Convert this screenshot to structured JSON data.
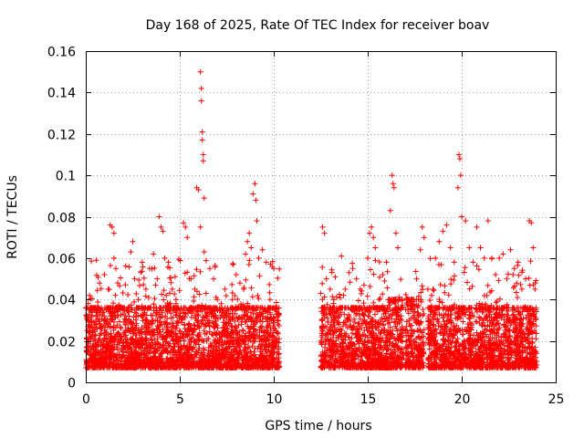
{
  "chart_data": {
    "type": "scatter",
    "title": "Day 168 of 2025, Rate Of TEC Index for receiver boav",
    "xlabel": "GPS time / hours",
    "ylabel": "ROTI / TECUs",
    "xlim": [
      0,
      25
    ],
    "ylim": [
      0,
      0.16
    ],
    "xticks": [
      0,
      5,
      10,
      15,
      20,
      25
    ],
    "xtick_labels": [
      "0",
      "5",
      "10",
      "15",
      "20",
      "25"
    ],
    "yticks": [
      0,
      0.02,
      0.04,
      0.06,
      0.08,
      0.1,
      0.12,
      0.14,
      0.16
    ],
    "ytick_labels": [
      "0",
      "0.02",
      "0.04",
      "0.06",
      "0.08",
      "0.1",
      "0.12",
      "0.14",
      "0.16"
    ],
    "grid": true,
    "marker": "+",
    "color": "#ff0000",
    "data_gap_hours": [
      10.3,
      12.5
    ],
    "series": [
      {
        "name": "ROTI",
        "points": [
          [
            0.1,
            0.015
          ],
          [
            0.2,
            0.042
          ],
          [
            0.3,
            0.03
          ],
          [
            0.5,
            0.02
          ],
          [
            0.6,
            0.035
          ],
          [
            0.8,
            0.018
          ],
          [
            1.0,
            0.025
          ],
          [
            1.2,
            0.045
          ],
          [
            1.3,
            0.076
          ],
          [
            1.4,
            0.075
          ],
          [
            1.5,
            0.072
          ],
          [
            1.5,
            0.06
          ],
          [
            1.6,
            0.055
          ],
          [
            1.7,
            0.048
          ],
          [
            1.9,
            0.02
          ],
          [
            2.1,
            0.03
          ],
          [
            2.4,
            0.063
          ],
          [
            2.5,
            0.068
          ],
          [
            2.6,
            0.05
          ],
          [
            2.8,
            0.04
          ],
          [
            3.0,
            0.058
          ],
          [
            3.2,
            0.045
          ],
          [
            3.4,
            0.055
          ],
          [
            3.6,
            0.062
          ],
          [
            3.8,
            0.05
          ],
          [
            3.9,
            0.08
          ],
          [
            4.0,
            0.075
          ],
          [
            4.1,
            0.073
          ],
          [
            4.2,
            0.06
          ],
          [
            4.4,
            0.058
          ],
          [
            4.6,
            0.045
          ],
          [
            4.8,
            0.04
          ],
          [
            5.0,
            0.035
          ],
          [
            5.2,
            0.077
          ],
          [
            5.3,
            0.075
          ],
          [
            5.4,
            0.07
          ],
          [
            5.6,
            0.05
          ],
          [
            5.8,
            0.045
          ],
          [
            5.9,
            0.094
          ],
          [
            6.0,
            0.093
          ],
          [
            6.1,
            0.075
          ],
          [
            6.1,
            0.15
          ],
          [
            6.15,
            0.142
          ],
          [
            6.15,
            0.136
          ],
          [
            6.2,
            0.121
          ],
          [
            6.2,
            0.117
          ],
          [
            6.25,
            0.11
          ],
          [
            6.25,
            0.107
          ],
          [
            6.3,
            0.089
          ],
          [
            6.3,
            0.063
          ],
          [
            6.4,
            0.043
          ],
          [
            6.6,
            0.055
          ],
          [
            6.8,
            0.05
          ],
          [
            7.0,
            0.04
          ],
          [
            7.2,
            0.038
          ],
          [
            7.4,
            0.045
          ],
          [
            7.6,
            0.035
          ],
          [
            7.8,
            0.04
          ],
          [
            8.0,
            0.052
          ],
          [
            8.2,
            0.048
          ],
          [
            8.4,
            0.045
          ],
          [
            8.5,
            0.062
          ],
          [
            8.6,
            0.068
          ],
          [
            8.7,
            0.072
          ],
          [
            8.8,
            0.065
          ],
          [
            8.9,
            0.091
          ],
          [
            9.0,
            0.096
          ],
          [
            9.05,
            0.088
          ],
          [
            9.1,
            0.078
          ],
          [
            9.2,
            0.06
          ],
          [
            9.4,
            0.064
          ],
          [
            9.6,
            0.058
          ],
          [
            9.8,
            0.04
          ],
          [
            10.0,
            0.055
          ],
          [
            10.2,
            0.03
          ],
          [
            12.6,
            0.075
          ],
          [
            12.7,
            0.072
          ],
          [
            12.8,
            0.05
          ],
          [
            13.0,
            0.045
          ],
          [
            13.2,
            0.04
          ],
          [
            13.4,
            0.035
          ],
          [
            13.6,
            0.061
          ],
          [
            13.8,
            0.045
          ],
          [
            14.0,
            0.053
          ],
          [
            14.2,
            0.055
          ],
          [
            14.4,
            0.05
          ],
          [
            14.6,
            0.045
          ],
          [
            14.8,
            0.047
          ],
          [
            15.0,
            0.06
          ],
          [
            15.1,
            0.072
          ],
          [
            15.2,
            0.075
          ],
          [
            15.3,
            0.07
          ],
          [
            15.4,
            0.065
          ],
          [
            15.6,
            0.04
          ],
          [
            15.8,
            0.052
          ],
          [
            16.0,
            0.058
          ],
          [
            16.2,
            0.083
          ],
          [
            16.3,
            0.1
          ],
          [
            16.35,
            0.096
          ],
          [
            16.4,
            0.094
          ],
          [
            16.5,
            0.072
          ],
          [
            16.6,
            0.065
          ],
          [
            16.8,
            0.03
          ],
          [
            17.0,
            0.025
          ],
          [
            17.2,
            0.03
          ],
          [
            17.4,
            0.035
          ],
          [
            17.6,
            0.05
          ],
          [
            17.8,
            0.064
          ],
          [
            17.9,
            0.075
          ],
          [
            18.0,
            0.07
          ],
          [
            18.2,
            0.045
          ],
          [
            18.4,
            0.042
          ],
          [
            18.6,
            0.06
          ],
          [
            18.8,
            0.068
          ],
          [
            19.0,
            0.073
          ],
          [
            19.2,
            0.076
          ],
          [
            19.4,
            0.065
          ],
          [
            19.6,
            0.058
          ],
          [
            19.8,
            0.094
          ],
          [
            19.85,
            0.11
          ],
          [
            19.9,
            0.108
          ],
          [
            19.95,
            0.1
          ],
          [
            20.0,
            0.08
          ],
          [
            20.2,
            0.078
          ],
          [
            20.4,
            0.065
          ],
          [
            20.6,
            0.058
          ],
          [
            20.8,
            0.075
          ],
          [
            21.0,
            0.065
          ],
          [
            21.2,
            0.06
          ],
          [
            21.4,
            0.078
          ],
          [
            21.6,
            0.06
          ],
          [
            21.8,
            0.052
          ],
          [
            22.0,
            0.06
          ],
          [
            22.2,
            0.062
          ],
          [
            22.4,
            0.05
          ],
          [
            22.6,
            0.064
          ],
          [
            22.8,
            0.055
          ],
          [
            23.0,
            0.058
          ],
          [
            23.2,
            0.045
          ],
          [
            23.4,
            0.05
          ],
          [
            23.6,
            0.078
          ],
          [
            23.7,
            0.077
          ],
          [
            23.8,
            0.065
          ],
          [
            23.9,
            0.045
          ]
        ],
        "segments": [
          [
            0.0,
            10.3,
            0.003,
            0.036
          ],
          [
            12.5,
            16.1,
            0.003,
            0.036
          ],
          [
            16.1,
            16.9,
            0.003,
            0.04
          ],
          [
            17.0,
            18.0,
            0.003,
            0.04
          ],
          [
            18.2,
            24.0,
            0.003,
            0.036
          ]
        ]
      }
    ]
  }
}
